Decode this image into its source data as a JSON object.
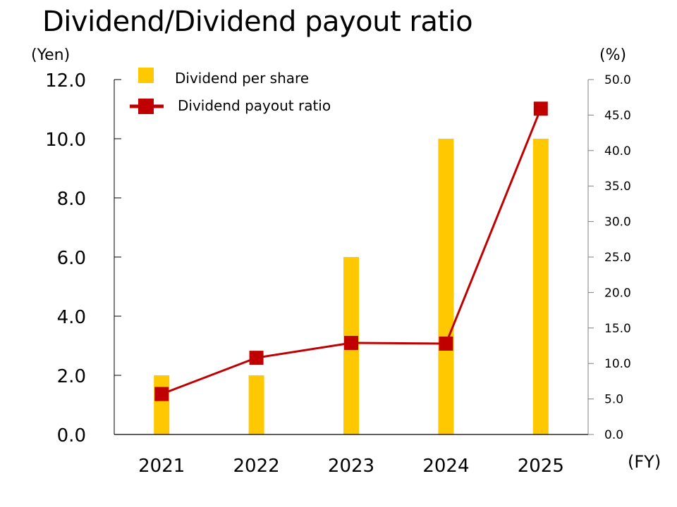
{
  "title": "Dividend/Dividend payout ratio",
  "axis_units": {
    "left": "(Yen)",
    "right": "(%)",
    "x": "(FY)"
  },
  "legend": [
    {
      "label": "Dividend per share",
      "color": "#FFC800",
      "marker": "square"
    },
    {
      "label": "Dividend payout ratio",
      "color": "#C00000",
      "marker": "line-square"
    }
  ],
  "colors": {
    "bar": "#FFC800",
    "line": "#C00000",
    "left_axis": "#000000",
    "right_axis": "#808080"
  },
  "chart_data": {
    "type": "bar+line",
    "title": "Dividend/Dividend payout ratio",
    "categories": [
      "2021",
      "2022",
      "2023",
      "2024",
      "2025"
    ],
    "xlabel": "(FY)",
    "series": [
      {
        "name": "Dividend per share",
        "type": "bar",
        "axis": "left",
        "unit": "Yen",
        "values": [
          2.0,
          2.0,
          6.0,
          10.0,
          10.0
        ]
      },
      {
        "name": "Dividend payout ratio",
        "type": "line",
        "axis": "right",
        "unit": "%",
        "values": [
          5.7,
          10.8,
          12.9,
          12.8,
          45.9
        ]
      }
    ],
    "y_left": {
      "label": "(Yen)",
      "range": [
        0,
        12
      ],
      "ticks": [
        "0.0",
        "2.0",
        "4.0",
        "6.0",
        "8.0",
        "10.0",
        "12.0"
      ]
    },
    "y_right": {
      "label": "(%)",
      "range": [
        0,
        50
      ],
      "ticks": [
        "0.0",
        "5.0",
        "10.0",
        "15.0",
        "20.0",
        "25.0",
        "30.0",
        "35.0",
        "40.0",
        "45.0",
        "50.0"
      ]
    },
    "grid": false,
    "legend_position": "top-left inside plot"
  }
}
